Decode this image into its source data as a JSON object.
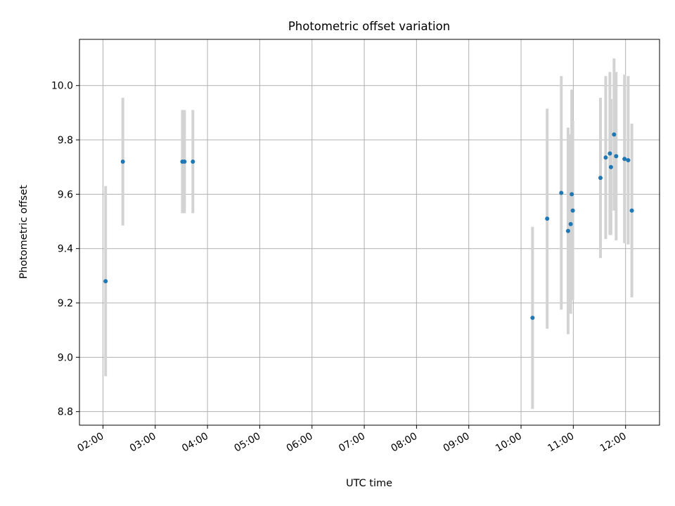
{
  "chart_data": {
    "type": "scatter",
    "title": "Photometric offset variation",
    "xlabel": "UTC time",
    "ylabel": "Photometric offset",
    "x_unit": "UTC time (hours)",
    "xlim": [
      1.55,
      12.65
    ],
    "ylim": [
      8.75,
      10.17
    ],
    "x_ticks": [
      {
        "value": 2,
        "label": "02:00"
      },
      {
        "value": 3,
        "label": "03:00"
      },
      {
        "value": 4,
        "label": "04:00"
      },
      {
        "value": 5,
        "label": "05:00"
      },
      {
        "value": 6,
        "label": "06:00"
      },
      {
        "value": 7,
        "label": "07:00"
      },
      {
        "value": 8,
        "label": "08:00"
      },
      {
        "value": 9,
        "label": "09:00"
      },
      {
        "value": 10,
        "label": "10:00"
      },
      {
        "value": 11,
        "label": "11:00"
      },
      {
        "value": 12,
        "label": "12:00"
      }
    ],
    "y_ticks": [
      {
        "value": 8.8,
        "label": "8.8"
      },
      {
        "value": 9.0,
        "label": "9.0"
      },
      {
        "value": 9.2,
        "label": "9.2"
      },
      {
        "value": 9.4,
        "label": "9.4"
      },
      {
        "value": 9.6,
        "label": "9.6"
      },
      {
        "value": 9.8,
        "label": "9.8"
      },
      {
        "value": 10.0,
        "label": "10.0"
      }
    ],
    "grid": true,
    "point_color": "#1f77b4",
    "errorbar_color": "#d3d3d3",
    "points": [
      {
        "x": 2.05,
        "y": 9.28,
        "err": 0.35
      },
      {
        "x": 2.38,
        "y": 9.72,
        "err": 0.235
      },
      {
        "x": 3.52,
        "y": 9.72,
        "err": 0.19
      },
      {
        "x": 3.56,
        "y": 9.72,
        "err": 0.19
      },
      {
        "x": 3.72,
        "y": 9.72,
        "err": 0.19
      },
      {
        "x": 10.22,
        "y": 9.145,
        "err": 0.335
      },
      {
        "x": 10.5,
        "y": 9.51,
        "err": 0.405
      },
      {
        "x": 10.77,
        "y": 9.605,
        "err": 0.43
      },
      {
        "x": 10.9,
        "y": 9.465,
        "err": 0.38
      },
      {
        "x": 10.95,
        "y": 9.49,
        "err": 0.33
      },
      {
        "x": 10.97,
        "y": 9.6,
        "err": 0.385
      },
      {
        "x": 10.99,
        "y": 9.54,
        "err": 0.33
      },
      {
        "x": 11.52,
        "y": 9.66,
        "err": 0.295
      },
      {
        "x": 11.62,
        "y": 9.735,
        "err": 0.3
      },
      {
        "x": 11.7,
        "y": 9.75,
        "err": 0.3
      },
      {
        "x": 11.72,
        "y": 9.7,
        "err": 0.25
      },
      {
        "x": 11.78,
        "y": 9.82,
        "err": 0.28
      },
      {
        "x": 11.82,
        "y": 9.74,
        "err": 0.31
      },
      {
        "x": 11.98,
        "y": 9.73,
        "err": 0.31
      },
      {
        "x": 12.05,
        "y": 9.725,
        "err": 0.31
      },
      {
        "x": 12.12,
        "y": 9.54,
        "err": 0.32
      }
    ]
  }
}
